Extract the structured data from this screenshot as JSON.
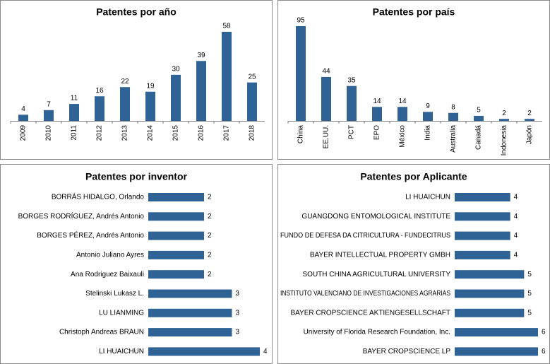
{
  "chart_data": [
    {
      "type": "bar",
      "title": "Patentes por año",
      "color": "#2f6395",
      "categories": [
        "2009",
        "2010",
        "2011",
        "2012",
        "2013",
        "2014",
        "2015",
        "2016",
        "2017",
        "2018"
      ],
      "values": [
        4,
        7,
        11,
        16,
        22,
        19,
        30,
        39,
        58,
        25
      ]
    },
    {
      "type": "bar",
      "title": "Patentes por país",
      "color": "#2f6395",
      "categories": [
        "China",
        "EE.UU.",
        "PCT",
        "EPO",
        "México",
        "India",
        "Australia",
        "Canadá",
        "Indonesia",
        "Japón"
      ],
      "values": [
        95,
        44,
        35,
        14,
        14,
        9,
        8,
        5,
        2,
        2
      ]
    },
    {
      "type": "barh",
      "title": "Patentes por inventor",
      "color": "#2f6395",
      "categories": [
        "BORRÁS HIDALGO, Orlando",
        "BORGES RODRÍGUEZ, Andrés Antonio",
        "BORGES PÉREZ, Andrés Antonio",
        "Antonio Juliano Ayres",
        "Ana Rodriguez Baixauli",
        "Stelinski Lukasz L.",
        "LU LIANMING",
        "Christoph Andreas BRAUN",
        "LI HUAICHUN"
      ],
      "values": [
        2,
        2,
        2,
        2,
        2,
        3,
        3,
        3,
        4
      ]
    },
    {
      "type": "barh",
      "title": "Patentes por Aplicante",
      "color": "#2f6395",
      "categories": [
        "LI HUAICHUN",
        "GUANGDONG ENTOMOLOGICAL INSTITUTE",
        "FUNDO DE DEFESA DA CITRICULTURA - FUNDECITRUS",
        "BAYER INTELLECTUAL PROPERTY GMBH",
        "SOUTH CHINA AGRICULTURAL UNIVERSITY",
        "INSTITUTO VALENCIANO DE INVESTIGACIONES AGRARIAS",
        "BAYER CROPSCIENCE AKTIENGESELLSCHAFT",
        "University of Florida Research Foundation, Inc.",
        "BAYER CROPSCIENCE LP"
      ],
      "values": [
        4,
        4,
        4,
        4,
        5,
        5,
        5,
        6,
        6
      ]
    }
  ]
}
